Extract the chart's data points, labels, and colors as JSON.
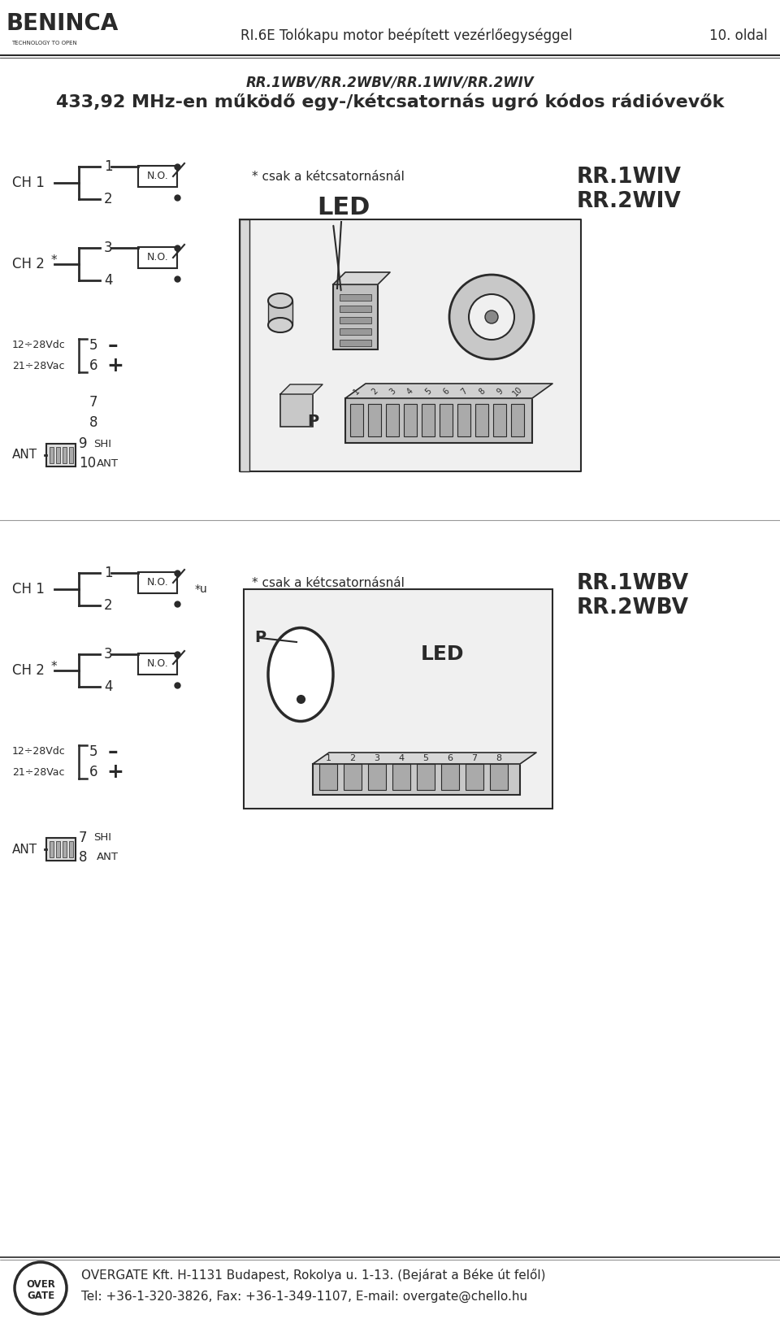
{
  "page_title_line1": "RR.1WBV/RR.2WBV/RR.1WIV/RR.2WIV",
  "page_title_line2": "433,92 MHz-en működő egy-/kétcsatornás ugró kódos rádióvevők",
  "header_left": "RI.6E Tolókapu motor beépített vezérlőegységgel",
  "header_right": "10. oldal",
  "footer_line1": "OVERGATE Kft. H-1131 Budapest, Rokolya u. 1-13. (Bejárat a Béke út felől)",
  "footer_line2": "Tel: +36-1-320-3826, Fax: +36-1-349-1107, E-mail: overgate@chello.hu",
  "bg_color": "#ffffff",
  "dark_color": "#2a2a2a",
  "diagram1_csatorna": "* csak a kétcsatornásnál",
  "diagram1_model1": "RR.1WIV",
  "diagram1_model2": "RR.2WIV",
  "diagram2_csatorna": "* csak a kétcsatornásnál",
  "diagram2_model1": "RR.1WBV",
  "diagram2_model2": "RR.2WBV",
  "diagram2_u": "*u"
}
